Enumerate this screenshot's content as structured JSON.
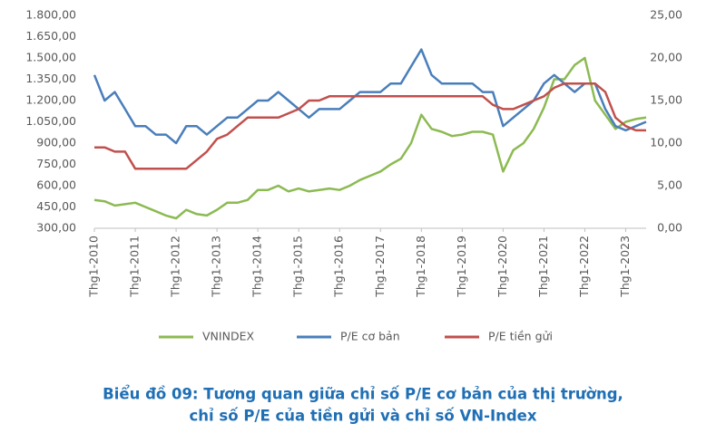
{
  "chart_data": {
    "type": "line",
    "title": [
      "Biểu đồ 09: Tương quan giữa chỉ số P/E cơ bản của thị trường,",
      "chỉ số P/E của tiền gửi và chỉ số VN-Index"
    ],
    "categories": [
      "Thg1-2010",
      null,
      null,
      null,
      "Thg1-2011",
      null,
      null,
      null,
      "Thg1-2012",
      null,
      null,
      null,
      "Thg1-2013",
      null,
      null,
      null,
      "Thg1-2014",
      null,
      null,
      null,
      "Thg1-2015",
      null,
      null,
      null,
      "Thg1-2016",
      null,
      null,
      null,
      "Thg1-2017",
      null,
      null,
      null,
      "Thg1-2018",
      null,
      null,
      null,
      "Thg1-2019",
      null,
      null,
      null,
      "Thg1-2020",
      null,
      null,
      null,
      "Thg1-2021",
      null,
      null,
      null,
      "Thg1-2022",
      null,
      null,
      null,
      "Thg1-2023",
      null,
      null
    ],
    "series": [
      {
        "name": "VNINDEX",
        "color": "#8cba52",
        "axis": "y",
        "values": [
          500,
          490,
          460,
          470,
          480,
          450,
          420,
          390,
          370,
          430,
          400,
          390,
          430,
          480,
          480,
          500,
          570,
          570,
          600,
          560,
          580,
          560,
          570,
          580,
          570,
          600,
          640,
          670,
          700,
          750,
          790,
          900,
          1100,
          1000,
          980,
          950,
          960,
          980,
          980,
          960,
          700,
          850,
          900,
          1000,
          1150,
          1350,
          1350,
          1450,
          1500,
          1200,
          1100,
          1000,
          1050,
          1070,
          1080
        ]
      },
      {
        "name": "P/E cơ bản",
        "color": "#4a7ebb",
        "axis": "y2",
        "values": [
          18,
          15,
          16,
          14,
          12,
          12,
          11,
          11,
          10,
          12,
          12,
          11,
          12,
          13,
          13,
          14,
          15,
          15,
          16,
          15,
          14,
          13,
          14,
          14,
          14,
          15,
          16,
          16,
          16,
          17,
          17,
          19,
          21,
          18,
          17,
          17,
          17,
          17,
          16,
          16,
          12,
          13,
          14,
          15,
          17,
          18,
          17,
          16,
          17,
          17,
          14,
          12,
          11.5,
          12,
          12.5
        ]
      },
      {
        "name": "P/E tiền gửi",
        "color": "#c0504d",
        "axis": "y2",
        "values": [
          9.5,
          9.5,
          9,
          9,
          7,
          7,
          7,
          7,
          7,
          7,
          8,
          9,
          10.5,
          11,
          12,
          13,
          13,
          13,
          13,
          13.5,
          14,
          15,
          15,
          15.5,
          15.5,
          15.5,
          15.5,
          15.5,
          15.5,
          15.5,
          15.5,
          15.5,
          15.5,
          15.5,
          15.5,
          15.5,
          15.5,
          15.5,
          15.5,
          14.5,
          14,
          14,
          14.5,
          15,
          15.5,
          16.5,
          17,
          17,
          17,
          17,
          16,
          13,
          12,
          11.5,
          11.5
        ]
      }
    ],
    "ylim": [
      300,
      1800
    ],
    "yticks": [
      {
        "value": 300,
        "label": "300,00"
      },
      {
        "value": 450,
        "label": "450,00"
      },
      {
        "value": 600,
        "label": "600,00"
      },
      {
        "value": 750,
        "label": "750,00"
      },
      {
        "value": 900,
        "label": "900,00"
      },
      {
        "value": 1050,
        "label": "1.050,00"
      },
      {
        "value": 1200,
        "label": "1.200,00"
      },
      {
        "value": 1350,
        "label": "1.350,00"
      },
      {
        "value": 1500,
        "label": "1.500,00"
      },
      {
        "value": 1650,
        "label": "1.650,00"
      },
      {
        "value": 1800,
        "label": "1.800,00"
      }
    ],
    "y2lim": [
      0,
      25
    ],
    "y2ticks": [
      {
        "value": 0,
        "label": "0,00"
      },
      {
        "value": 5,
        "label": "5,00"
      },
      {
        "value": 10,
        "label": "10,00"
      },
      {
        "value": 15,
        "label": "15,00"
      },
      {
        "value": 20,
        "label": "20,00"
      },
      {
        "value": 25,
        "label": "25,00"
      }
    ],
    "grid": false,
    "legend": "bottom"
  }
}
